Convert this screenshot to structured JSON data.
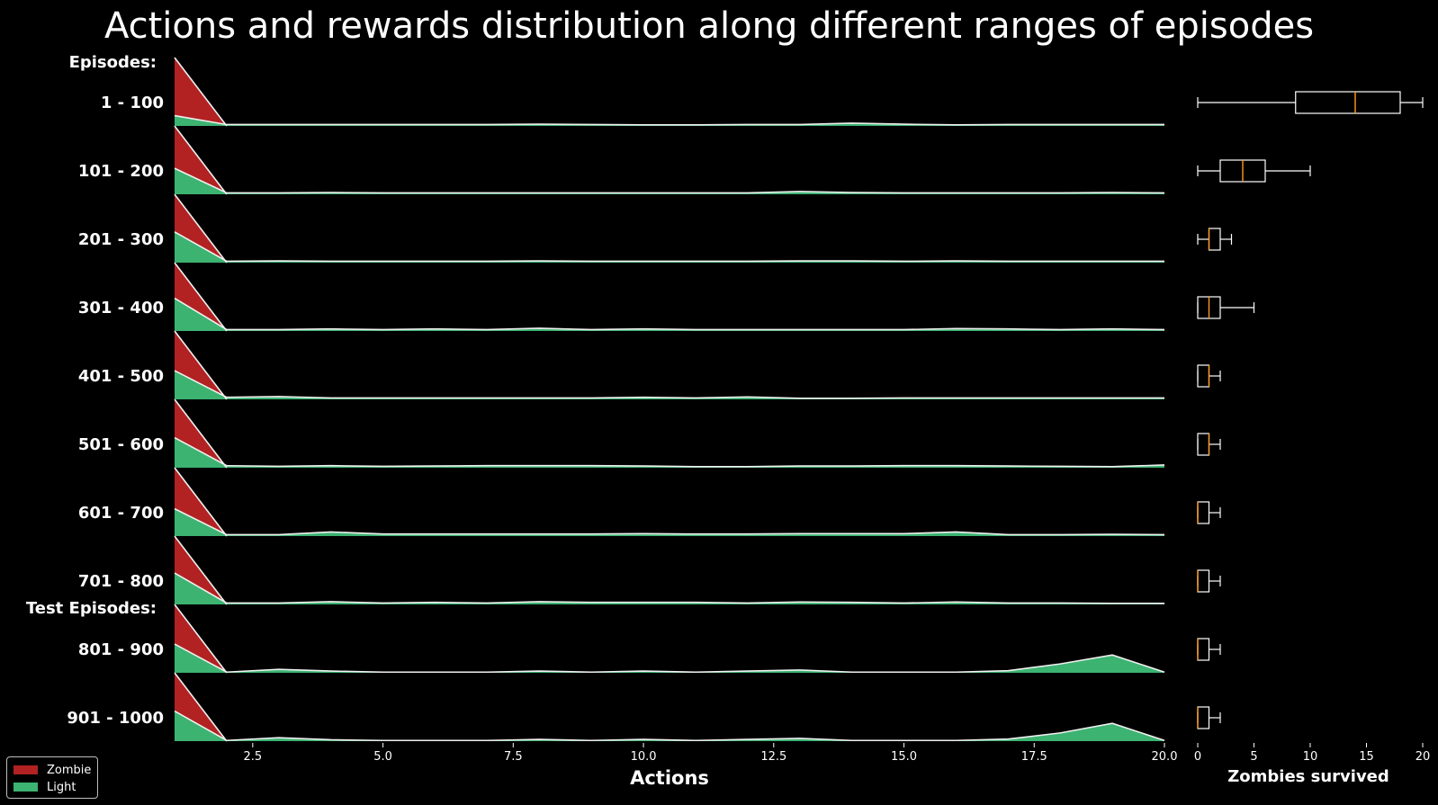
{
  "chart_data": {
    "type": "area",
    "title": "Actions and rewards distribution along different ranges of episodes",
    "xlabel": "Actions",
    "xlim": [
      1,
      20
    ],
    "x_ticks": [
      "2.5",
      "5.0",
      "7.5",
      "10.0",
      "12.5",
      "15.0",
      "17.5",
      "20.0"
    ],
    "group_labels": {
      "training": "Episodes:",
      "test": "Test Episodes:"
    },
    "colors": {
      "zombie": "#b22222",
      "light": "#3cb371",
      "outline": "#f0f0f0",
      "box": "#ffffff",
      "median": "#ff9a1f"
    },
    "legend": {
      "position": "lower-left",
      "entries": [
        {
          "label": "Zombie",
          "color": "#b22222"
        },
        {
          "label": "Light",
          "color": "#3cb371"
        }
      ]
    },
    "x": [
      1,
      2,
      3,
      4,
      5,
      6,
      7,
      8,
      9,
      10,
      11,
      12,
      13,
      14,
      15,
      16,
      17,
      18,
      19,
      20
    ],
    "series": [
      {
        "range": "1 - 100",
        "zombie": [
          1.0,
          0
        ],
        "light": [
          0.15,
          0.02,
          0.02,
          0.02,
          0.02,
          0.02,
          0.02,
          0.025,
          0.02,
          0.015,
          0.015,
          0.02,
          0.02,
          0.04,
          0.025,
          0.015,
          0.02,
          0.02,
          0.02,
          0.02
        ]
      },
      {
        "range": "101 - 200",
        "zombie": [
          1.0,
          0
        ],
        "light": [
          0.38,
          0.02,
          0.02,
          0.025,
          0.02,
          0.02,
          0.02,
          0.02,
          0.02,
          0.02,
          0.02,
          0.02,
          0.04,
          0.025,
          0.02,
          0.02,
          0.02,
          0.02,
          0.025,
          0.02
        ]
      },
      {
        "range": "201 - 300",
        "zombie": [
          1.0,
          0
        ],
        "light": [
          0.45,
          0.02,
          0.025,
          0.02,
          0.02,
          0.02,
          0.02,
          0.025,
          0.02,
          0.02,
          0.02,
          0.02,
          0.025,
          0.025,
          0.02,
          0.025,
          0.02,
          0.02,
          0.02,
          0.02
        ]
      },
      {
        "range": "301 - 400",
        "zombie": [
          1.0,
          0
        ],
        "light": [
          0.48,
          0.02,
          0.02,
          0.03,
          0.02,
          0.03,
          0.02,
          0.04,
          0.02,
          0.03,
          0.02,
          0.02,
          0.02,
          0.02,
          0.02,
          0.035,
          0.03,
          0.02,
          0.03,
          0.02
        ]
      },
      {
        "range": "401 - 500",
        "zombie": [
          1.0,
          0
        ],
        "light": [
          0.42,
          0.03,
          0.04,
          0.02,
          0.02,
          0.02,
          0.02,
          0.02,
          0.02,
          0.03,
          0.02,
          0.035,
          0.015,
          0.015,
          0.02,
          0.02,
          0.02,
          0.02,
          0.02,
          0.02
        ]
      },
      {
        "range": "501 - 600",
        "zombie": [
          1.0,
          0
        ],
        "light": [
          0.44,
          0.03,
          0.02,
          0.03,
          0.02,
          0.025,
          0.03,
          0.03,
          0.03,
          0.025,
          0.015,
          0.015,
          0.025,
          0.025,
          0.03,
          0.03,
          0.025,
          0.02,
          0.015,
          0.04
        ]
      },
      {
        "range": "601 - 700",
        "zombie": [
          1.0,
          0
        ],
        "light": [
          0.4,
          0.02,
          0.02,
          0.06,
          0.03,
          0.03,
          0.03,
          0.03,
          0.03,
          0.035,
          0.03,
          0.03,
          0.035,
          0.035,
          0.035,
          0.06,
          0.02,
          0.02,
          0.025,
          0.02
        ]
      },
      {
        "range": "701 - 800",
        "zombie": [
          1.0,
          0
        ],
        "light": [
          0.46,
          0.02,
          0.02,
          0.04,
          0.02,
          0.03,
          0.02,
          0.04,
          0.03,
          0.03,
          0.03,
          0.02,
          0.035,
          0.03,
          0.02,
          0.035,
          0.02,
          0.02,
          0.015,
          0.015
        ]
      },
      {
        "range": "801 - 900",
        "zombie": [
          1.0,
          0
        ],
        "light": [
          0.42,
          0.01,
          0.05,
          0.025,
          0.01,
          0.01,
          0.01,
          0.025,
          0.01,
          0.025,
          0.01,
          0.025,
          0.04,
          0.01,
          0.01,
          0.01,
          0.03,
          0.13,
          0.26,
          0.01
        ]
      },
      {
        "range": "901 - 1000",
        "zombie": [
          1.0,
          0
        ],
        "light": [
          0.44,
          0.01,
          0.05,
          0.02,
          0.01,
          0.01,
          0.01,
          0.025,
          0.01,
          0.025,
          0.01,
          0.025,
          0.04,
          0.01,
          0.01,
          0.01,
          0.03,
          0.12,
          0.26,
          0.01
        ]
      }
    ],
    "boxplot": {
      "xlabel": "Zombies survived",
      "xlim": [
        0,
        20
      ],
      "x_ticks": [
        "0",
        "5",
        "10",
        "15",
        "20"
      ],
      "boxes": [
        {
          "range": "1 - 100",
          "min": 0,
          "q1": 8.7,
          "median": 14,
          "q3": 18,
          "max": 20
        },
        {
          "range": "101 - 200",
          "min": 0,
          "q1": 2,
          "median": 4,
          "q3": 6,
          "max": 10
        },
        {
          "range": "201 - 300",
          "min": 0,
          "q1": 1,
          "median": 1,
          "q3": 2,
          "max": 3
        },
        {
          "range": "301 - 400",
          "min": 0,
          "q1": 0,
          "median": 1,
          "q3": 2,
          "max": 5
        },
        {
          "range": "401 - 500",
          "min": 0,
          "q1": 0,
          "median": 1,
          "q3": 1,
          "max": 2
        },
        {
          "range": "501 - 600",
          "min": 0,
          "q1": 0,
          "median": 1,
          "q3": 1,
          "max": 2
        },
        {
          "range": "601 - 700",
          "min": 0,
          "q1": 0,
          "median": 0,
          "q3": 1,
          "max": 2
        },
        {
          "range": "701 - 800",
          "min": 0,
          "q1": 0,
          "median": 0,
          "q3": 1,
          "max": 2
        },
        {
          "range": "801 - 900",
          "min": 0,
          "q1": 0,
          "median": 0,
          "q3": 1,
          "max": 2
        },
        {
          "range": "901 - 1000",
          "min": 0,
          "q1": 0,
          "median": 0,
          "q3": 1,
          "max": 2
        }
      ]
    }
  }
}
